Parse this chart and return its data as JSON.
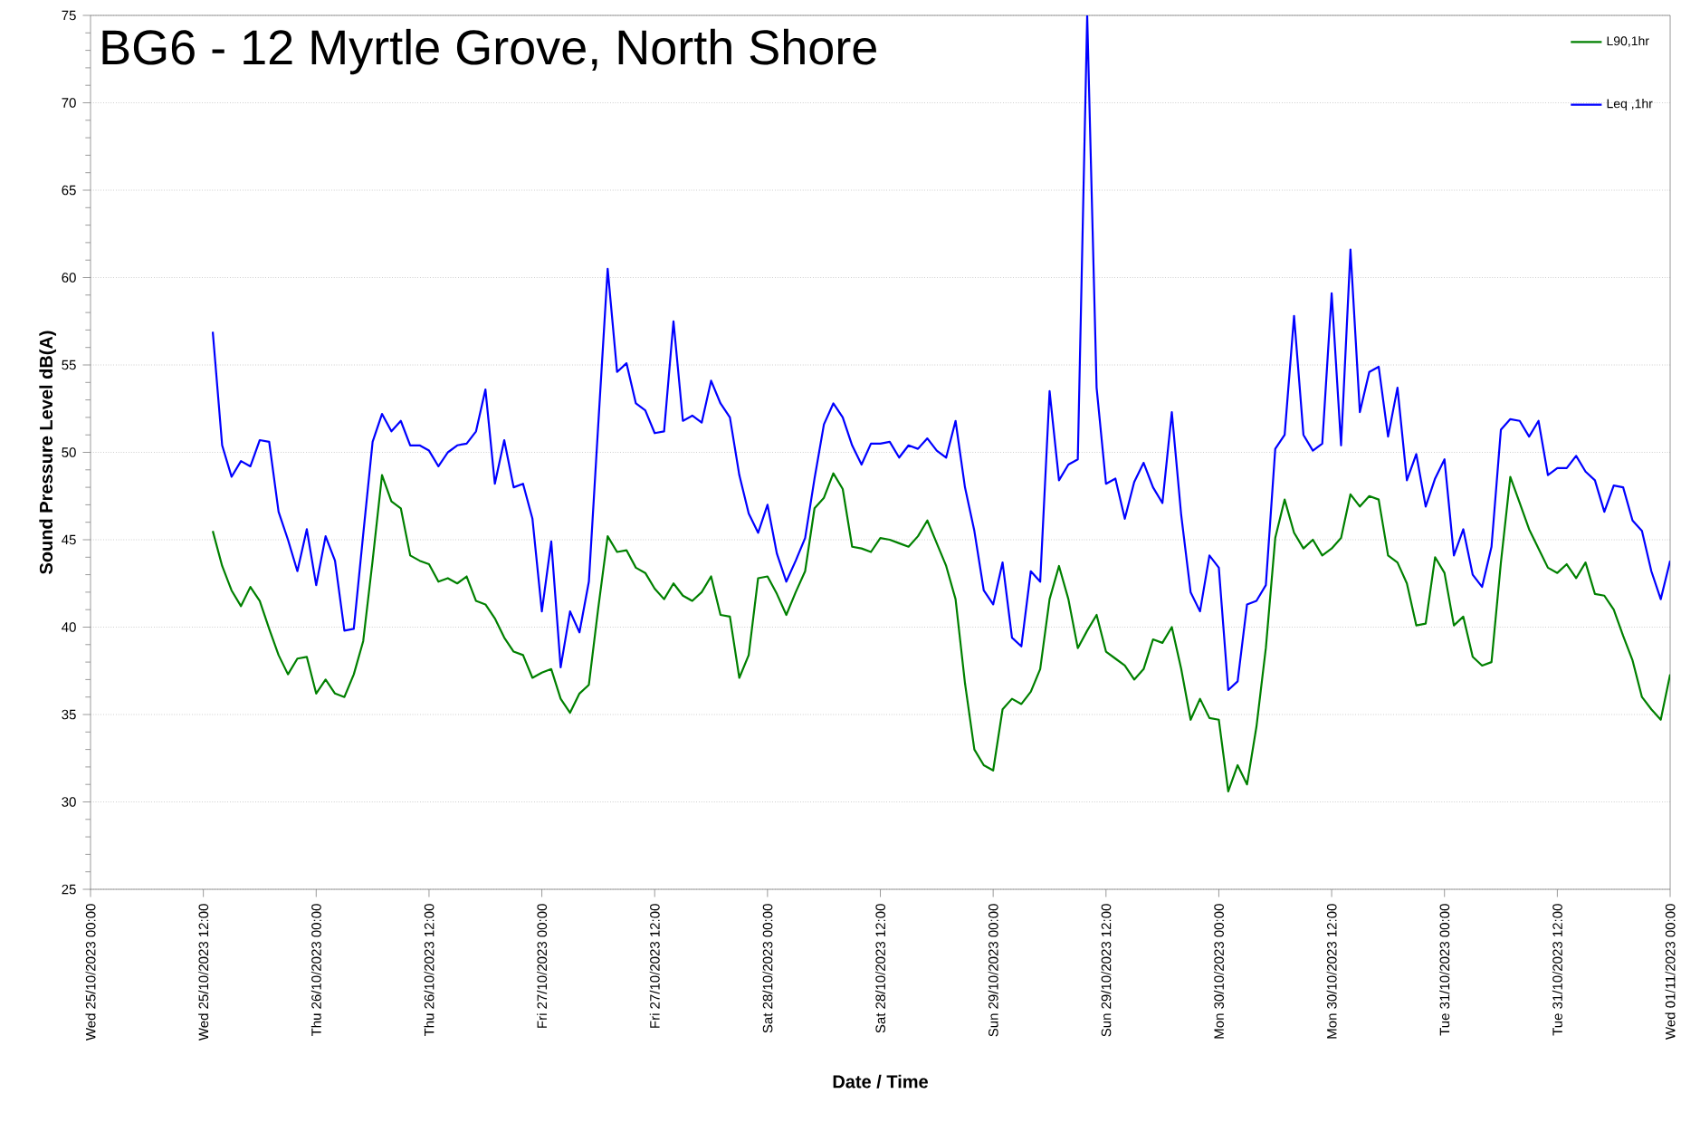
{
  "chart_data": {
    "type": "line",
    "title": "BG6 - 12 Myrtle Grove, North Shore",
    "xlabel": "Date / Time",
    "ylabel": "Sound Pressure Level dB(A)",
    "x": [
      "2023-10-25T13:00",
      "2023-10-25T14:00",
      "2023-10-25T15:00",
      "2023-10-25T16:00",
      "2023-10-25T17:00",
      "2023-10-25T18:00",
      "2023-10-25T19:00",
      "2023-10-25T20:00",
      "2023-10-25T21:00",
      "2023-10-25T22:00",
      "2023-10-25T23:00",
      "2023-10-26T00:00",
      "2023-10-26T01:00",
      "2023-10-26T02:00",
      "2023-10-26T03:00",
      "2023-10-26T04:00",
      "2023-10-26T05:00",
      "2023-10-26T06:00",
      "2023-10-26T07:00",
      "2023-10-26T08:00",
      "2023-10-26T09:00",
      "2023-10-26T10:00",
      "2023-10-26T11:00",
      "2023-10-26T12:00",
      "2023-10-26T13:00",
      "2023-10-26T14:00",
      "2023-10-26T15:00",
      "2023-10-26T16:00",
      "2023-10-26T17:00",
      "2023-10-26T18:00",
      "2023-10-26T19:00",
      "2023-10-26T20:00",
      "2023-10-26T21:00",
      "2023-10-26T22:00",
      "2023-10-26T23:00",
      "2023-10-27T00:00",
      "2023-10-27T01:00",
      "2023-10-27T02:00",
      "2023-10-27T03:00",
      "2023-10-27T04:00",
      "2023-10-27T05:00",
      "2023-10-27T06:00",
      "2023-10-27T07:00",
      "2023-10-27T08:00",
      "2023-10-27T09:00",
      "2023-10-27T10:00",
      "2023-10-27T11:00",
      "2023-10-27T12:00",
      "2023-10-27T13:00",
      "2023-10-27T14:00",
      "2023-10-27T15:00",
      "2023-10-27T16:00",
      "2023-10-27T17:00",
      "2023-10-27T18:00",
      "2023-10-27T19:00",
      "2023-10-27T20:00",
      "2023-10-27T21:00",
      "2023-10-27T22:00",
      "2023-10-27T23:00",
      "2023-10-28T00:00",
      "2023-10-28T01:00",
      "2023-10-28T02:00",
      "2023-10-28T03:00",
      "2023-10-28T04:00",
      "2023-10-28T05:00",
      "2023-10-28T06:00",
      "2023-10-28T07:00",
      "2023-10-28T08:00",
      "2023-10-28T09:00",
      "2023-10-28T10:00",
      "2023-10-28T11:00",
      "2023-10-28T12:00",
      "2023-10-28T13:00",
      "2023-10-28T14:00",
      "2023-10-28T15:00",
      "2023-10-28T16:00",
      "2023-10-28T17:00",
      "2023-10-28T18:00",
      "2023-10-28T19:00",
      "2023-10-28T20:00",
      "2023-10-28T21:00",
      "2023-10-28T22:00",
      "2023-10-28T23:00",
      "2023-10-29T00:00",
      "2023-10-29T01:00",
      "2023-10-29T02:00",
      "2023-10-29T03:00",
      "2023-10-29T04:00",
      "2023-10-29T05:00",
      "2023-10-29T06:00",
      "2023-10-29T07:00",
      "2023-10-29T08:00",
      "2023-10-29T09:00",
      "2023-10-29T10:00",
      "2023-10-29T11:00",
      "2023-10-29T12:00",
      "2023-10-29T13:00",
      "2023-10-29T14:00",
      "2023-10-29T15:00",
      "2023-10-29T16:00",
      "2023-10-29T17:00",
      "2023-10-29T18:00",
      "2023-10-29T19:00",
      "2023-10-29T20:00",
      "2023-10-29T21:00",
      "2023-10-29T22:00",
      "2023-10-29T23:00",
      "2023-10-30T00:00",
      "2023-10-30T01:00",
      "2023-10-30T02:00",
      "2023-10-30T03:00",
      "2023-10-30T04:00",
      "2023-10-30T05:00",
      "2023-10-30T06:00",
      "2023-10-30T07:00",
      "2023-10-30T08:00",
      "2023-10-30T09:00",
      "2023-10-30T10:00",
      "2023-10-30T11:00",
      "2023-10-30T12:00",
      "2023-10-30T13:00",
      "2023-10-30T14:00",
      "2023-10-30T15:00",
      "2023-10-30T16:00",
      "2023-10-30T17:00",
      "2023-10-30T18:00",
      "2023-10-30T19:00",
      "2023-10-30T20:00",
      "2023-10-30T21:00",
      "2023-10-30T22:00",
      "2023-10-30T23:00",
      "2023-10-31T00:00",
      "2023-10-31T01:00",
      "2023-10-31T02:00",
      "2023-10-31T03:00",
      "2023-10-31T04:00",
      "2023-10-31T05:00",
      "2023-10-31T06:00",
      "2023-10-31T07:00",
      "2023-10-31T08:00",
      "2023-10-31T09:00",
      "2023-10-31T10:00",
      "2023-10-31T11:00",
      "2023-10-31T12:00",
      "2023-10-31T13:00",
      "2023-10-31T14:00",
      "2023-10-31T15:00",
      "2023-10-31T16:00",
      "2023-10-31T17:00",
      "2023-10-31T18:00",
      "2023-10-31T19:00",
      "2023-10-31T20:00",
      "2023-10-31T21:00",
      "2023-10-31T22:00",
      "2023-10-31T23:00",
      "2023-11-01T00:00"
    ],
    "series": [
      {
        "name": "L90,1hr",
        "color": "#008000",
        "values": [
          45.5,
          43.5,
          42.1,
          41.2,
          42.3,
          41.5,
          39.9,
          38.4,
          37.3,
          38.2,
          38.3,
          36.2,
          37.0,
          36.2,
          36.0,
          37.3,
          39.2,
          43.8,
          48.7,
          47.2,
          46.8,
          44.1,
          43.8,
          43.6,
          42.6,
          42.8,
          42.5,
          42.9,
          41.5,
          41.3,
          40.5,
          39.4,
          38.6,
          38.4,
          37.1,
          37.4,
          37.6,
          35.9,
          35.1,
          36.2,
          36.7,
          41.1,
          45.2,
          44.3,
          44.4,
          43.4,
          43.1,
          42.2,
          41.6,
          42.5,
          41.8,
          41.5,
          42.0,
          42.9,
          40.7,
          40.6,
          37.1,
          38.4,
          42.8,
          42.9,
          41.9,
          40.7,
          42.0,
          43.2,
          46.8,
          47.4,
          48.8,
          47.9,
          44.6,
          44.5,
          44.3,
          45.1,
          45.0,
          44.8,
          44.6,
          45.2,
          46.1,
          44.8,
          43.5,
          41.6,
          36.8,
          33.0,
          32.1,
          31.8,
          35.3,
          35.9,
          35.6,
          36.3,
          37.6,
          41.6,
          43.5,
          41.6,
          38.8,
          39.8,
          40.7,
          38.6,
          38.2,
          37.8,
          37.0,
          37.6,
          39.3,
          39.1,
          40.0,
          37.6,
          34.7,
          35.9,
          34.8,
          34.7,
          30.6,
          32.1,
          31.0,
          34.3,
          38.8,
          45.1,
          47.3,
          45.4,
          44.5,
          45.0,
          44.1,
          44.5,
          45.1,
          47.6,
          46.9,
          47.5,
          47.3,
          44.1,
          43.7,
          42.5,
          40.1,
          40.2,
          44.0,
          43.1,
          40.1,
          40.6,
          38.3,
          37.8,
          38.0,
          43.7,
          48.6,
          47.1,
          45.6,
          44.5,
          43.4,
          43.1,
          43.6,
          42.8,
          43.7,
          41.9,
          41.8,
          41.0,
          39.5,
          38.1,
          36.0,
          35.3,
          34.7,
          37.3
        ]
      },
      {
        "name": "Leq ,1hr",
        "color": "#0000ff",
        "values": [
          56.9,
          50.4,
          48.6,
          49.5,
          49.2,
          50.7,
          50.6,
          46.6,
          45.0,
          43.2,
          45.6,
          42.4,
          45.2,
          43.8,
          39.8,
          39.9,
          45.3,
          50.6,
          52.2,
          51.2,
          51.8,
          50.4,
          50.4,
          50.1,
          49.2,
          50.0,
          50.4,
          50.5,
          51.2,
          53.6,
          48.2,
          50.7,
          48.0,
          48.2,
          46.2,
          40.9,
          44.9,
          37.7,
          40.9,
          39.7,
          42.6,
          51.6,
          60.5,
          54.6,
          55.1,
          52.8,
          52.4,
          51.1,
          51.2,
          57.5,
          51.8,
          52.1,
          51.7,
          54.1,
          52.8,
          52.0,
          48.7,
          46.5,
          45.4,
          47.0,
          44.2,
          42.6,
          43.8,
          45.1,
          48.5,
          51.6,
          52.8,
          52.0,
          50.4,
          49.3,
          50.5,
          50.5,
          50.6,
          49.7,
          50.4,
          50.2,
          50.8,
          50.1,
          49.7,
          51.8,
          48.0,
          45.5,
          42.1,
          41.3,
          43.7,
          39.4,
          38.9,
          43.2,
          42.6,
          53.5,
          48.4,
          49.3,
          49.6,
          75,
          53.7,
          48.2,
          48.5,
          46.2,
          48.3,
          49.4,
          48.0,
          47.1,
          52.3,
          46.4,
          42.0,
          40.9,
          44.1,
          43.4,
          36.4,
          36.9,
          41.3,
          41.5,
          42.4,
          50.2,
          51.0,
          57.8,
          51.0,
          50.1,
          50.5,
          59.1,
          50.4,
          61.6,
          52.3,
          54.6,
          54.9,
          50.9,
          53.7,
          48.4,
          49.9,
          46.9,
          48.5,
          49.6,
          44.1,
          45.6,
          43.0,
          42.3,
          44.6,
          51.3,
          51.9,
          51.8,
          50.9,
          51.8,
          48.7,
          49.1,
          49.1,
          49.8,
          48.9,
          48.4,
          46.6,
          48.1,
          48.0,
          46.1,
          45.5,
          43.2,
          41.6,
          43.8
        ]
      }
    ],
    "xlim": [
      "2023-10-25T00:00",
      "2023-11-01T00:00"
    ],
    "xticks": [
      {
        "value": "2023-10-25T00:00",
        "label": "Wed 25/10/2023 00:00"
      },
      {
        "value": "2023-10-25T12:00",
        "label": "Wed 25/10/2023 12:00"
      },
      {
        "value": "2023-10-26T00:00",
        "label": "Thu 26/10/2023 00:00"
      },
      {
        "value": "2023-10-26T12:00",
        "label": "Thu 26/10/2023 12:00"
      },
      {
        "value": "2023-10-27T00:00",
        "label": "Fri 27/10/2023 00:00"
      },
      {
        "value": "2023-10-27T12:00",
        "label": "Fri 27/10/2023 12:00"
      },
      {
        "value": "2023-10-28T00:00",
        "label": "Sat 28/10/2023 00:00"
      },
      {
        "value": "2023-10-28T12:00",
        "label": "Sat 28/10/2023 12:00"
      },
      {
        "value": "2023-10-29T00:00",
        "label": "Sun 29/10/2023 00:00"
      },
      {
        "value": "2023-10-29T12:00",
        "label": "Sun 29/10/2023 12:00"
      },
      {
        "value": "2023-10-30T00:00",
        "label": "Mon 30/10/2023 00:00"
      },
      {
        "value": "2023-10-30T12:00",
        "label": "Mon 30/10/2023 12:00"
      },
      {
        "value": "2023-10-31T00:00",
        "label": "Tue 31/10/2023 00:00"
      },
      {
        "value": "2023-10-31T12:00",
        "label": "Tue 31/10/2023 12:00"
      },
      {
        "value": "2023-11-01T00:00",
        "label": "Wed 01/11/2023 00:00"
      }
    ],
    "ylim": [
      25,
      75
    ],
    "yticks": [
      25,
      30,
      35,
      40,
      45,
      50,
      55,
      60,
      65,
      70,
      75
    ],
    "grid": "y",
    "legend": "top right",
    "marker": "none",
    "line_style": "solid"
  }
}
